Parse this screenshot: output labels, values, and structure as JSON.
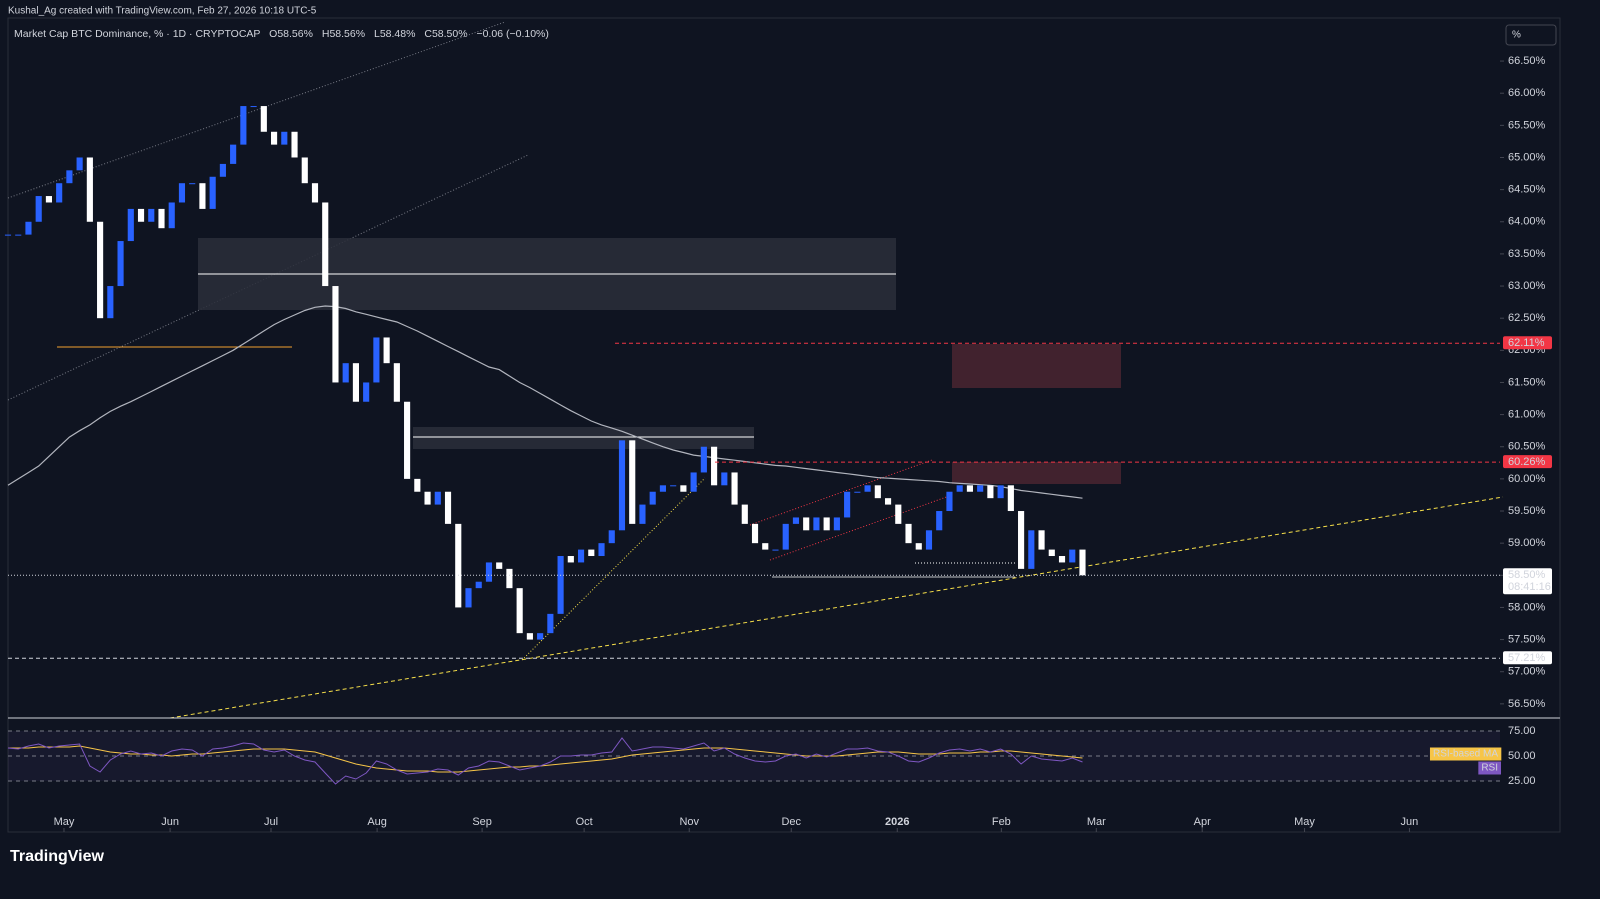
{
  "header": {
    "attribution": "Kushal_Ag created with TradingView.com, Feb 27, 2026 10:18 UTC-5",
    "scale_button": "%",
    "brand": "TradingView"
  },
  "chart_data": {
    "type": "candlestick",
    "title": "Market Cap BTC Dominance, % · 1D · CRYPTOCAP",
    "ohlc": [
      "O58.56%",
      "H58.56%",
      "L58.48%",
      "C58.50%",
      "−0.06 (−0.10%)"
    ],
    "up_color": "#2962ff",
    "down_color": "#ffffff",
    "ma_color": "#b2b5be",
    "values": [
      63.8,
      63.8,
      64.0,
      64.4,
      64.3,
      64.6,
      64.8,
      65.0,
      64.0,
      62.5,
      63.0,
      63.7,
      64.2,
      64.0,
      64.2,
      63.9,
      64.3,
      64.6,
      64.6,
      64.2,
      64.7,
      64.9,
      65.2,
      65.8,
      65.8,
      65.4,
      65.2,
      65.4,
      65.0,
      64.6,
      64.3,
      63.0,
      61.5,
      61.8,
      61.2,
      61.5,
      62.2,
      61.8,
      61.2,
      60.0,
      59.8,
      59.6,
      59.8,
      59.3,
      58.0,
      58.3,
      58.4,
      58.7,
      58.6,
      58.3,
      57.6,
      57.5,
      57.6,
      57.9,
      58.8,
      58.7,
      58.9,
      58.8,
      59.0,
      59.2,
      60.6,
      59.3,
      59.6,
      59.8,
      59.9,
      59.9,
      59.8,
      60.1,
      60.5,
      59.9,
      60.1,
      59.6,
      59.3,
      59.0,
      58.9,
      58.9,
      59.3,
      59.4,
      59.2,
      59.4,
      59.2,
      59.4,
      59.8,
      59.8,
      59.9,
      59.7,
      59.6,
      59.3,
      59.0,
      58.9,
      59.2,
      59.5,
      59.8,
      59.9,
      59.8,
      59.9,
      59.7,
      59.9,
      59.5,
      58.6,
      59.2,
      58.9,
      58.8,
      58.7,
      58.9,
      58.5
    ],
    "ma_values": [
      59.9,
      60.0,
      60.1,
      60.2,
      60.35,
      60.5,
      60.65,
      60.75,
      60.84,
      60.95,
      61.05,
      61.13,
      61.2,
      61.28,
      61.36,
      61.44,
      61.52,
      61.6,
      61.68,
      61.76,
      61.84,
      61.92,
      62.0,
      62.1,
      62.2,
      62.3,
      62.4,
      62.48,
      62.55,
      62.62,
      62.67,
      62.69,
      62.68,
      62.65,
      62.6,
      62.56,
      62.52,
      62.48,
      62.44,
      62.37,
      62.3,
      62.22,
      62.14,
      62.06,
      61.98,
      61.9,
      61.82,
      61.74,
      61.7,
      61.6,
      61.5,
      61.42,
      61.33,
      61.24,
      61.15,
      61.06,
      60.98,
      60.9,
      60.84,
      60.79,
      60.74,
      60.68,
      60.62,
      60.56,
      60.5,
      60.45,
      60.41,
      60.37,
      60.35,
      60.33,
      60.31,
      60.29,
      60.27,
      60.25,
      60.23,
      60.21,
      60.2,
      60.18,
      60.16,
      60.14,
      60.12,
      60.1,
      60.08,
      60.06,
      60.04,
      60.02,
      60.01,
      60.0,
      59.99,
      59.98,
      59.97,
      59.96,
      59.94,
      59.93,
      59.92,
      59.91,
      59.9,
      59.88,
      59.85,
      59.82,
      59.8,
      59.78,
      59.76,
      59.74,
      59.72,
      59.7
    ],
    "xlim": [
      0,
      145.8
    ],
    "xticks": [
      {
        "value": 5.47,
        "label": "May"
      },
      {
        "value": 15.84,
        "label": "Jun"
      },
      {
        "value": 25.7,
        "label": "Jul"
      },
      {
        "value": 36.07,
        "label": "Aug"
      },
      {
        "value": 46.33,
        "label": "Sep"
      },
      {
        "value": 56.3,
        "label": "Oct"
      },
      {
        "value": 66.57,
        "label": "Nov"
      },
      {
        "value": 76.54,
        "label": "Dec"
      },
      {
        "value": 86.9,
        "label": "2026"
      },
      {
        "value": 97.07,
        "label": "Feb"
      },
      {
        "value": 106.35,
        "label": "Mar"
      },
      {
        "value": 116.7,
        "label": "Apr"
      },
      {
        "value": 126.7,
        "label": "May"
      },
      {
        "value": 136.95,
        "label": "Jun"
      }
    ],
    "ylim": [
      56.28,
      67.17
    ],
    "yticks": [
      {
        "value": 56.5,
        "label": "56.50%"
      },
      {
        "value": 57,
        "label": "57.00%"
      },
      {
        "value": 57.5,
        "label": "57.50%"
      },
      {
        "value": 58,
        "label": "58.00%"
      },
      {
        "value": 58.5,
        "label": "58.50%"
      },
      {
        "value": 59,
        "label": "59.00%"
      },
      {
        "value": 59.5,
        "label": "59.50%"
      },
      {
        "value": 60,
        "label": "60.00%"
      },
      {
        "value": 60.5,
        "label": "60.50%"
      },
      {
        "value": 61,
        "label": "61.00%"
      },
      {
        "value": 61.5,
        "label": "61.50%"
      },
      {
        "value": 62,
        "label": "62.00%"
      },
      {
        "value": 62.5,
        "label": "62.50%"
      },
      {
        "value": 63,
        "label": "63.00%"
      },
      {
        "value": 63.5,
        "label": "63.50%"
      },
      {
        "value": 64,
        "label": "64.00%"
      },
      {
        "value": 64.5,
        "label": "64.50%"
      },
      {
        "value": 65,
        "label": "65.00%"
      },
      {
        "value": 65.5,
        "label": "65.50%"
      },
      {
        "value": 66,
        "label": "66.00%"
      },
      {
        "value": 66.5,
        "label": "66.50%"
      }
    ],
    "levels": [
      {
        "value": 62.11,
        "label": "62.11%",
        "color": "#f23645",
        "text_color": "#ffffff"
      },
      {
        "value": 60.26,
        "label": "60.26%",
        "color": "#f23645",
        "text_color": "#ffffff"
      },
      {
        "value": 58.5,
        "label": "58.50%",
        "sublabel": "08:41:16",
        "color": "#ffffff",
        "text_color": "#131722"
      },
      {
        "value": 57.21,
        "label": "57.21%",
        "color": "#ffffff",
        "text_color": "#131722"
      }
    ],
    "rsi": {
      "ylim": [
        6,
        86
      ],
      "yticks": [
        {
          "value": 75,
          "label": "75.00"
        },
        {
          "value": 50,
          "label": "50.00"
        },
        {
          "value": 25,
          "label": "25.00"
        }
      ],
      "series": [
        {
          "name": "RSI-based MA",
          "color": "#f7c548",
          "values": [
            58,
            58,
            58,
            59,
            59,
            59,
            59,
            60,
            58,
            56,
            54,
            53,
            52,
            52,
            51,
            51,
            50,
            51,
            52,
            52,
            53,
            54,
            55,
            56,
            57,
            57,
            57,
            57,
            56,
            55,
            54,
            51,
            48,
            45,
            42,
            40,
            38,
            37,
            36,
            35,
            35,
            35,
            34,
            34,
            34,
            35,
            36,
            37,
            38,
            39,
            39,
            40,
            40,
            41,
            42,
            43,
            44,
            45,
            46,
            47,
            49,
            51,
            52,
            53,
            54,
            55,
            56,
            57,
            58,
            58,
            58,
            57,
            56,
            55,
            54,
            53,
            52,
            51,
            50,
            50,
            50,
            50,
            51,
            52,
            53,
            54,
            54,
            54,
            53,
            52,
            52,
            52,
            53,
            53,
            53,
            54,
            54,
            55,
            55,
            54,
            53,
            52,
            51,
            50,
            49,
            48
          ]
        },
        {
          "name": "RSI",
          "color": "#7e57c2",
          "values": [
            58,
            57,
            60,
            62,
            58,
            60,
            61,
            62,
            40,
            34,
            46,
            52,
            55,
            52,
            53,
            50,
            55,
            57,
            56,
            50,
            57,
            58,
            60,
            63,
            62,
            56,
            54,
            56,
            50,
            46,
            44,
            33,
            22,
            30,
            27,
            33,
            45,
            42,
            36,
            32,
            33,
            34,
            37,
            36,
            31,
            38,
            40,
            45,
            44,
            40,
            36,
            38,
            40,
            44,
            50,
            50,
            51,
            51,
            53,
            54,
            68,
            55,
            57,
            59,
            59,
            58,
            57,
            60,
            63,
            55,
            58,
            52,
            48,
            45,
            44,
            45,
            50,
            52,
            48,
            52,
            49,
            53,
            57,
            57,
            58,
            55,
            54,
            50,
            45,
            44,
            48,
            53,
            56,
            57,
            55,
            57,
            54,
            57,
            52,
            42,
            50,
            47,
            46,
            45,
            48,
            44
          ]
        }
      ]
    }
  }
}
